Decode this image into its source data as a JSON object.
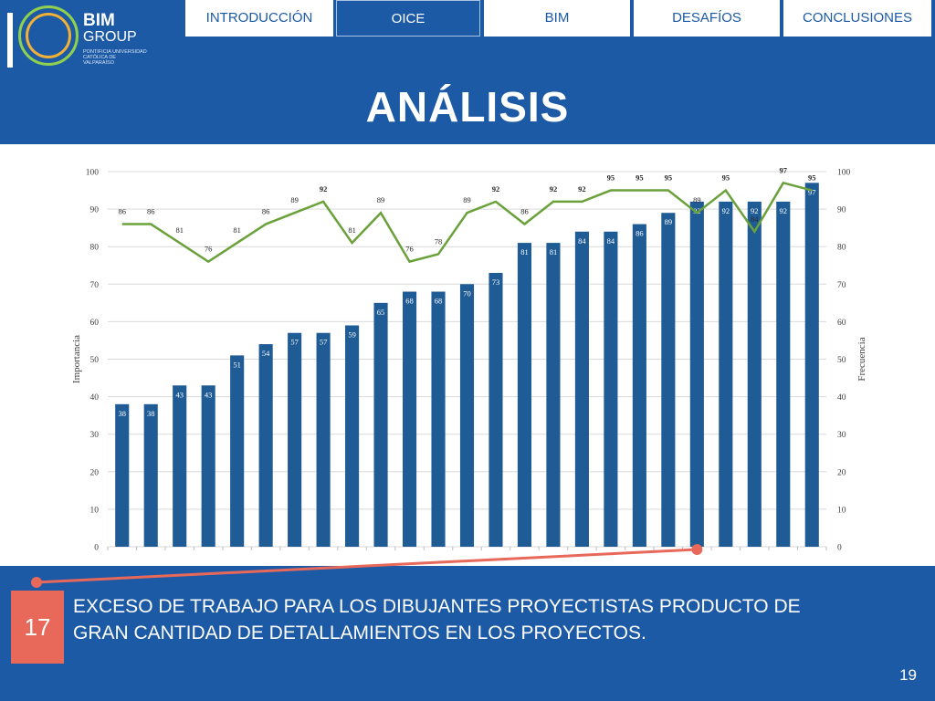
{
  "logo": {
    "name": "BIM",
    "name2": "GROUP",
    "subtitle": "PONTIFICIA UNIVERSIDAD CATÓLICA DE VALPARAÍSO"
  },
  "nav": [
    {
      "label": "INTRODUCCIÓN",
      "active": false
    },
    {
      "label": "OICE",
      "active": true
    },
    {
      "label": "BIM",
      "active": false
    },
    {
      "label": "DESAFÍOS",
      "active": false
    },
    {
      "label": "CONCLUSIONES",
      "active": false
    }
  ],
  "title": "ANÁLISIS",
  "chart_data": {
    "type": "bar",
    "ylabel": "Importancia",
    "y2label": "Frecuencia",
    "ylim": [
      0,
      100
    ],
    "y2lim": [
      0,
      100
    ],
    "yticks": [
      0,
      10,
      20,
      30,
      40,
      50,
      60,
      70,
      80,
      90,
      100
    ],
    "series": [
      {
        "type": "bar",
        "values": [
          38,
          38,
          43,
          43,
          51,
          54,
          57,
          57,
          59,
          65,
          68,
          68,
          70,
          73,
          81,
          81,
          84,
          84,
          86,
          89,
          92,
          92,
          92,
          92,
          97
        ]
      },
      {
        "type": "line",
        "values": [
          86,
          86,
          81,
          76,
          81,
          86,
          89,
          92,
          81,
          89,
          76,
          78,
          89,
          92,
          86,
          92,
          92,
          95,
          95,
          95,
          89,
          95,
          84,
          97,
          95
        ]
      }
    ],
    "highlight_index": 20,
    "colors": {
      "bar": "#1f5b95",
      "line": "#6aa13b",
      "grid": "#d9d9d9",
      "highlight": "#e8685a"
    }
  },
  "callout": {
    "number": "17",
    "text": "EXCESO DE TRABAJO PARA LOS DIBUJANTES PROYECTISTAS PRODUCTO DE GRAN CANTIDAD DE DETALLAMIENTOS EN LOS PROYECTOS."
  },
  "page_number": "19"
}
